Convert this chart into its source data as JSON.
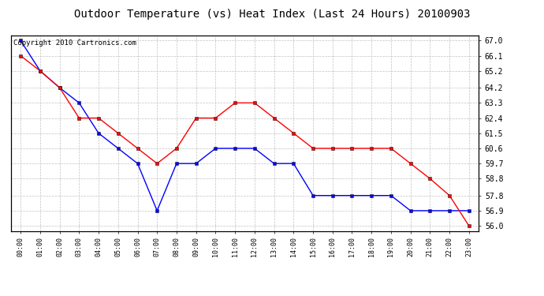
{
  "title": "Outdoor Temperature (vs) Heat Index (Last 24 Hours) 20100903",
  "copyright_text": "Copyright 2010 Cartronics.com",
  "hours": [
    "00:00",
    "01:00",
    "02:00",
    "03:00",
    "04:00",
    "05:00",
    "06:00",
    "07:00",
    "08:00",
    "09:00",
    "10:00",
    "11:00",
    "12:00",
    "13:00",
    "14:00",
    "15:00",
    "16:00",
    "17:00",
    "18:00",
    "19:00",
    "20:00",
    "21:00",
    "22:00",
    "23:00"
  ],
  "blue_data": [
    67.0,
    65.2,
    64.2,
    63.3,
    61.5,
    60.6,
    59.7,
    56.9,
    59.7,
    59.7,
    60.6,
    60.6,
    60.6,
    59.7,
    59.7,
    57.8,
    57.8,
    57.8,
    57.8,
    57.8,
    56.9,
    56.9,
    56.9,
    56.9
  ],
  "red_data": [
    66.1,
    65.2,
    64.2,
    62.4,
    62.4,
    61.5,
    60.6,
    59.7,
    60.6,
    62.4,
    62.4,
    63.3,
    63.3,
    62.4,
    61.5,
    60.6,
    60.6,
    60.6,
    60.6,
    60.6,
    59.7,
    58.8,
    57.8,
    56.0
  ],
  "yticks": [
    56.0,
    56.9,
    57.8,
    58.8,
    59.7,
    60.6,
    61.5,
    62.4,
    63.3,
    64.2,
    65.2,
    66.1,
    67.0
  ],
  "ymin": 55.7,
  "ymax": 67.3,
  "blue_color": "#0000FF",
  "red_color": "#FF0000",
  "background_color": "#FFFFFF",
  "grid_color": "#BBBBBB",
  "title_fontsize": 10,
  "copyright_fontsize": 6.5
}
